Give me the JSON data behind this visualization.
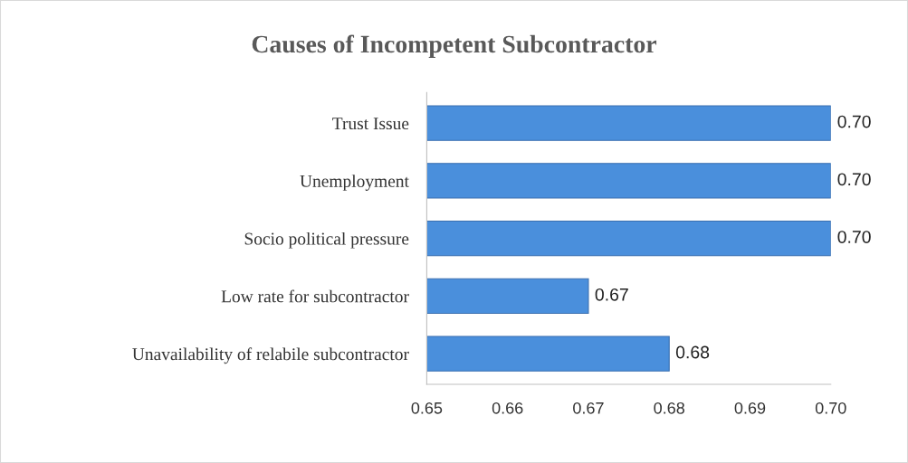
{
  "chart_data": {
    "type": "bar",
    "orientation": "horizontal",
    "title": "Causes of Incompetent Subcontractor",
    "categories": [
      "Trust Issue",
      "Unemployment",
      "Socio political pressure",
      "Low rate for subcontractor",
      "Unavailability of relabile subcontractor"
    ],
    "values": [
      0.7,
      0.7,
      0.7,
      0.67,
      0.68
    ],
    "value_labels": [
      "0.70",
      "0.70",
      "0.70",
      "0.67",
      "0.68"
    ],
    "color": "#4a8fdc",
    "xlim": [
      0.65,
      0.7
    ],
    "xticks": [
      {
        "value": 0.65,
        "label": "0.65"
      },
      {
        "value": 0.66,
        "label": "0.66"
      },
      {
        "value": 0.67,
        "label": "0.67"
      },
      {
        "value": 0.68,
        "label": "0.68"
      },
      {
        "value": 0.69,
        "label": "0.69"
      },
      {
        "value": 0.7,
        "label": "0.70"
      }
    ],
    "grid": false,
    "legend": false
  }
}
